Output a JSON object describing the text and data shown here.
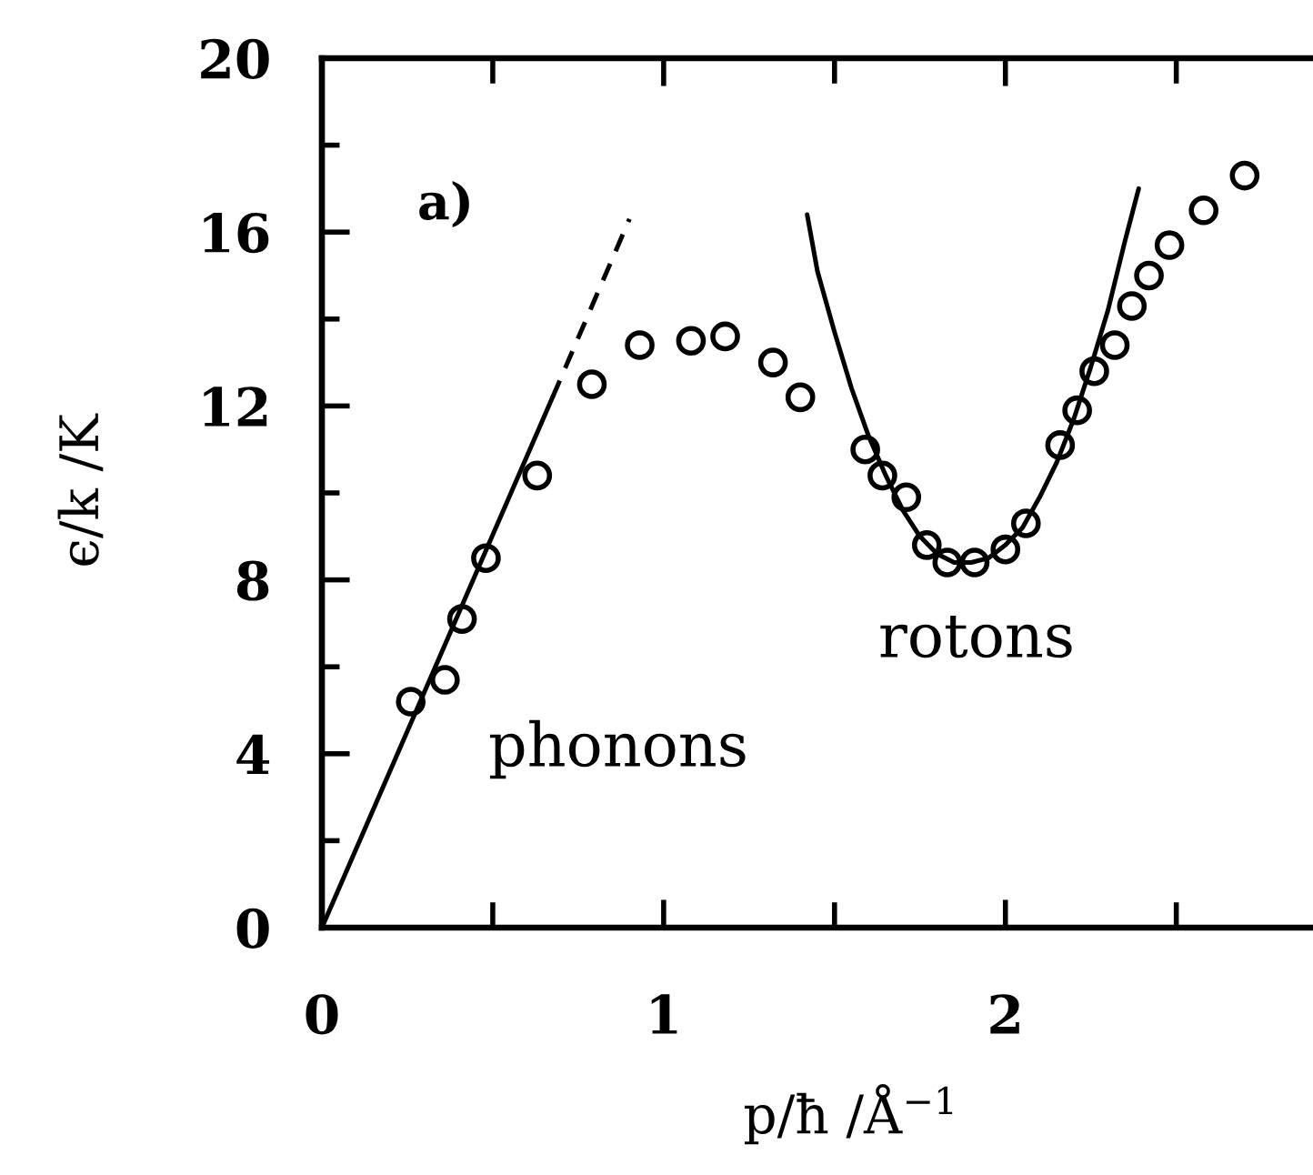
{
  "chart_data": {
    "type": "scatter",
    "xlabel": "p/ħ /Å$^{−1}$",
    "ylabel": "ϵ/k /K",
    "xlim": [
      0,
      2.9
    ],
    "ylim": [
      0,
      20
    ],
    "xticks": [
      0,
      {
        "value": 0.5,
        "label": null
      },
      1,
      {
        "value": 1.5,
        "label": null
      },
      2,
      {
        "value": 2.5,
        "label": null
      }
    ],
    "yticks": [
      0,
      {
        "value": 2,
        "label": null
      },
      4,
      {
        "value": 6,
        "label": null
      },
      8,
      {
        "value": 10,
        "label": null
      },
      12,
      {
        "value": 14,
        "label": null
      },
      16,
      {
        "value": 18,
        "label": null
      },
      20
    ],
    "annotations": [
      "a)",
      "phonons",
      "rotons"
    ],
    "series": [
      {
        "type": "line",
        "color": "#000000",
        "line_style": "solid",
        "marker": "none",
        "x": [
          0,
          0.675
        ],
        "values": [
          0,
          12.2
        ]
      },
      {
        "type": "line",
        "color": "#000000",
        "line_style": "dashed",
        "marker": "none",
        "x": [
          0.675,
          0.9
        ],
        "values": [
          12.2,
          16.3
        ]
      },
      {
        "type": "line",
        "color": "#000000",
        "line_style": "solid",
        "marker": "none",
        "x": [
          1.42,
          1.45,
          1.5,
          1.55,
          1.6,
          1.65,
          1.7,
          1.75,
          1.8,
          1.85,
          1.9,
          1.95,
          2.0,
          2.05,
          2.1,
          2.15,
          2.2,
          2.25,
          2.3,
          2.35,
          2.39
        ],
        "values": [
          16.4,
          15.1,
          13.7,
          12.4,
          11.3,
          10.4,
          9.6,
          9.0,
          8.6,
          8.4,
          8.4,
          8.5,
          8.8,
          9.2,
          9.9,
          10.7,
          11.7,
          12.9,
          14.2,
          15.8,
          17.0
        ]
      },
      {
        "color": "#000000",
        "marker": "circle",
        "x": [
          0.26,
          0.36,
          0.41,
          0.48,
          0.63,
          0.79,
          0.93,
          1.08,
          1.18,
          1.32,
          1.4,
          1.59,
          1.64,
          1.71,
          1.77,
          1.83,
          1.91,
          2.0,
          2.06,
          2.16,
          2.21,
          2.26,
          2.32,
          2.37,
          2.42,
          2.48,
          2.58,
          2.7
        ],
        "values": [
          5.2,
          5.7,
          7.1,
          8.5,
          10.4,
          12.5,
          13.4,
          13.5,
          13.6,
          13.0,
          12.2,
          11.0,
          10.4,
          9.9,
          8.8,
          8.4,
          8.4,
          8.7,
          9.3,
          11.1,
          11.9,
          12.8,
          13.4,
          14.3,
          15.0,
          15.7,
          16.5,
          17.3
        ]
      }
    ]
  }
}
